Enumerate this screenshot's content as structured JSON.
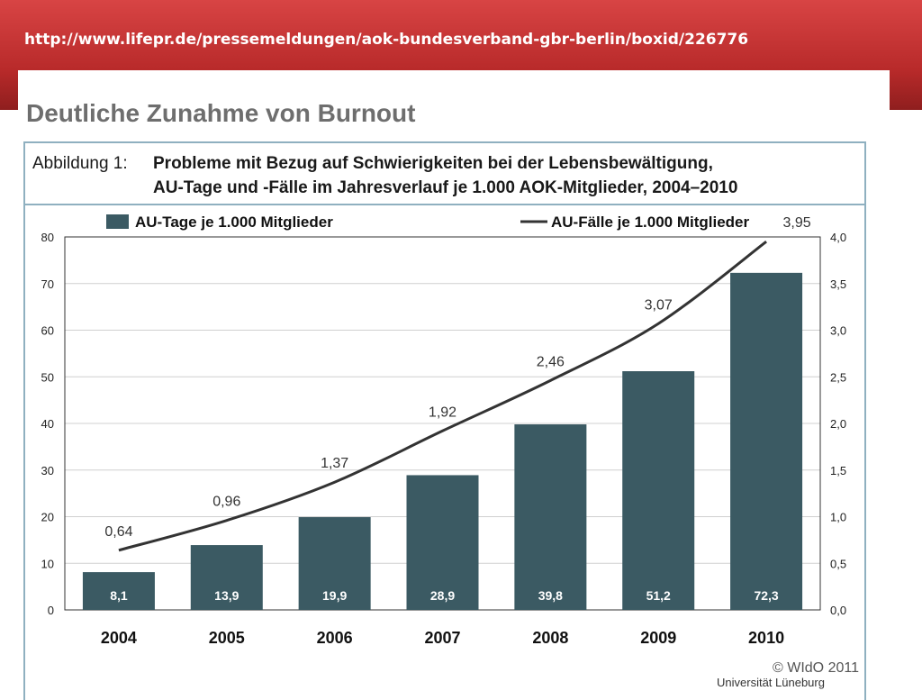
{
  "banner": {
    "url_text": "http://www.lifepr.de/pressemeldungen/aok-bundesverband-gbr-berlin/boxid/226776"
  },
  "slide": {
    "headline": "Deutliche Zunahme von Burnout"
  },
  "figure": {
    "label": "Abbildung 1:",
    "title_line1": "Probleme mit Bezug auf Schwierigkeiten bei der Lebensbewältigung,",
    "title_line2": "AU-Tage und -Fälle im Jahresverlauf je 1.000 AOK-Mitglieder, 2004–2010",
    "copyright": "© WIdO 2011"
  },
  "footer": {
    "text": "Universität Lüneburg"
  },
  "colors": {
    "bar": "#3b5a63",
    "line": "#333333",
    "frame": "#8fb0c0",
    "banner": "#c63535"
  },
  "chart_data": {
    "type": "bar",
    "categories": [
      "2004",
      "2005",
      "2006",
      "2007",
      "2008",
      "2009",
      "2010"
    ],
    "series": [
      {
        "name": "AU-Tage je 1.000 Mitglieder",
        "type": "bar",
        "axis": "left",
        "values": [
          8.1,
          13.9,
          19.9,
          28.9,
          39.8,
          51.2,
          72.3
        ],
        "labels": [
          "8,1",
          "13,9",
          "19,9",
          "28,9",
          "39,8",
          "51,2",
          "72,3"
        ]
      },
      {
        "name": "AU-Fälle je 1.000 Mitglieder",
        "type": "line",
        "axis": "right",
        "values": [
          0.64,
          0.96,
          1.37,
          1.92,
          2.46,
          3.07,
          3.95
        ],
        "labels": [
          "0,64",
          "0,96",
          "1,37",
          "1,92",
          "2,46",
          "3,07",
          "3,95"
        ]
      }
    ],
    "y_left": {
      "range": [
        0,
        80
      ],
      "ticks": [
        "0",
        "10",
        "20",
        "30",
        "40",
        "50",
        "60",
        "70",
        "80"
      ]
    },
    "y_right": {
      "range": [
        0,
        4
      ],
      "ticks": [
        "0,0",
        "0,5",
        "1,0",
        "1,5",
        "2,0",
        "2,5",
        "3,0",
        "3,5",
        "4,0"
      ]
    },
    "grid": true,
    "legend": "top"
  }
}
